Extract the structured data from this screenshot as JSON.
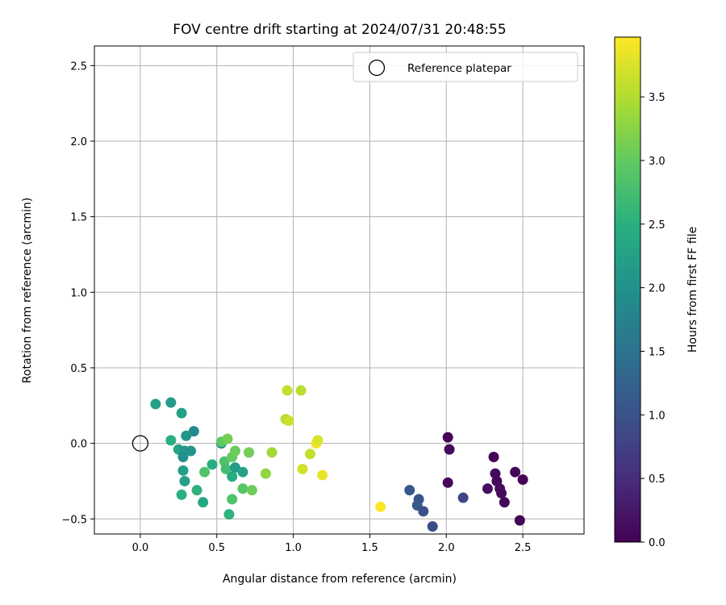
{
  "chart_data": {
    "type": "scatter",
    "title": "FOV centre drift starting at 2024/07/31 20:48:55",
    "xlabel": "Angular distance from reference (arcmin)",
    "ylabel": "Rotation from reference (arcmin)",
    "xlim": [
      -0.3,
      2.9
    ],
    "ylim": [
      -0.6,
      2.63
    ],
    "xticks": [
      0.0,
      0.5,
      1.0,
      1.5,
      2.0,
      2.5
    ],
    "xtick_labels": [
      "0.0",
      "0.5",
      "1.0",
      "1.5",
      "2.0",
      "2.5"
    ],
    "yticks": [
      -0.5,
      0.0,
      0.5,
      1.0,
      1.5,
      2.0,
      2.5
    ],
    "ytick_labels": [
      "−0.5",
      "0.0",
      "0.5",
      "1.0",
      "1.5",
      "2.0",
      "2.5"
    ],
    "grid": true,
    "legend": {
      "placement": "top-right",
      "entries": [
        "Reference platepar"
      ]
    },
    "reference_point": {
      "x": 0.0,
      "y": 0.0,
      "label": "Reference platepar"
    },
    "colorbar": {
      "label": "Hours from first FF file",
      "colormap": "viridis",
      "range": [
        0.0,
        3.97
      ],
      "ticks": [
        0.0,
        0.5,
        1.0,
        1.5,
        2.0,
        2.5,
        3.0,
        3.5
      ],
      "tick_labels": [
        "0.0",
        "0.5",
        "1.0",
        "1.5",
        "2.0",
        "2.5",
        "3.0",
        "3.5"
      ]
    },
    "points": [
      {
        "x": 2.01,
        "y": 0.04,
        "c": 0.05
      },
      {
        "x": 2.02,
        "y": -0.04,
        "c": 0.1
      },
      {
        "x": 2.01,
        "y": -0.26,
        "c": 0.08
      },
      {
        "x": 2.31,
        "y": -0.09,
        "c": 0.05
      },
      {
        "x": 2.32,
        "y": -0.2,
        "c": 0.1
      },
      {
        "x": 2.33,
        "y": -0.25,
        "c": 0.08
      },
      {
        "x": 2.35,
        "y": -0.3,
        "c": 0.12
      },
      {
        "x": 2.36,
        "y": -0.33,
        "c": 0.1
      },
      {
        "x": 2.38,
        "y": -0.39,
        "c": 0.08
      },
      {
        "x": 2.27,
        "y": -0.3,
        "c": 0.15
      },
      {
        "x": 2.45,
        "y": -0.19,
        "c": 0.05
      },
      {
        "x": 2.5,
        "y": -0.24,
        "c": 0.03
      },
      {
        "x": 2.48,
        "y": -0.51,
        "c": 0.02
      },
      {
        "x": 2.11,
        "y": -0.36,
        "c": 0.85
      },
      {
        "x": 1.76,
        "y": -0.31,
        "c": 1.05
      },
      {
        "x": 1.82,
        "y": -0.37,
        "c": 1.0
      },
      {
        "x": 1.81,
        "y": -0.41,
        "c": 1.1
      },
      {
        "x": 1.85,
        "y": -0.45,
        "c": 0.95
      },
      {
        "x": 1.91,
        "y": -0.55,
        "c": 0.9
      },
      {
        "x": 0.1,
        "y": 0.26,
        "c": 2.2
      },
      {
        "x": 0.2,
        "y": 0.27,
        "c": 2.15
      },
      {
        "x": 0.27,
        "y": 0.2,
        "c": 2.25
      },
      {
        "x": 0.35,
        "y": 0.08,
        "c": 1.85
      },
      {
        "x": 0.3,
        "y": 0.05,
        "c": 2.05
      },
      {
        "x": 0.2,
        "y": 0.02,
        "c": 2.5
      },
      {
        "x": 0.25,
        "y": -0.04,
        "c": 2.3
      },
      {
        "x": 0.29,
        "y": -0.05,
        "c": 2.1
      },
      {
        "x": 0.33,
        "y": -0.05,
        "c": 2.0
      },
      {
        "x": 0.28,
        "y": -0.09,
        "c": 1.95
      },
      {
        "x": 0.28,
        "y": -0.18,
        "c": 2.2
      },
      {
        "x": 0.29,
        "y": -0.25,
        "c": 2.25
      },
      {
        "x": 0.27,
        "y": -0.34,
        "c": 2.5
      },
      {
        "x": 0.37,
        "y": -0.31,
        "c": 2.55
      },
      {
        "x": 0.41,
        "y": -0.39,
        "c": 2.35
      },
      {
        "x": 0.42,
        "y": -0.19,
        "c": 2.85
      },
      {
        "x": 0.47,
        "y": -0.14,
        "c": 2.45
      },
      {
        "x": 0.53,
        "y": 0.0,
        "c": 1.8
      },
      {
        "x": 0.53,
        "y": 0.01,
        "c": 2.95
      },
      {
        "x": 0.57,
        "y": 0.03,
        "c": 3.1
      },
      {
        "x": 0.55,
        "y": -0.12,
        "c": 2.85
      },
      {
        "x": 0.56,
        "y": -0.17,
        "c": 2.75
      },
      {
        "x": 0.6,
        "y": -0.09,
        "c": 3.0
      },
      {
        "x": 0.62,
        "y": -0.05,
        "c": 3.05
      },
      {
        "x": 0.62,
        "y": -0.16,
        "c": 2.15
      },
      {
        "x": 0.67,
        "y": -0.19,
        "c": 2.3
      },
      {
        "x": 0.6,
        "y": -0.22,
        "c": 2.45
      },
      {
        "x": 0.67,
        "y": -0.3,
        "c": 2.9
      },
      {
        "x": 0.6,
        "y": -0.37,
        "c": 2.85
      },
      {
        "x": 0.58,
        "y": -0.47,
        "c": 2.55
      },
      {
        "x": 0.71,
        "y": -0.06,
        "c": 3.1
      },
      {
        "x": 0.73,
        "y": -0.31,
        "c": 3.05
      },
      {
        "x": 0.82,
        "y": -0.2,
        "c": 3.3
      },
      {
        "x": 0.86,
        "y": -0.06,
        "c": 3.4
      },
      {
        "x": 0.96,
        "y": 0.35,
        "c": 3.6
      },
      {
        "x": 1.05,
        "y": 0.35,
        "c": 3.55
      },
      {
        "x": 0.95,
        "y": 0.16,
        "c": 3.5
      },
      {
        "x": 0.97,
        "y": 0.15,
        "c": 3.65
      },
      {
        "x": 1.06,
        "y": -0.17,
        "c": 3.7
      },
      {
        "x": 1.11,
        "y": -0.07,
        "c": 3.6
      },
      {
        "x": 1.15,
        "y": 0.0,
        "c": 3.9
      },
      {
        "x": 1.16,
        "y": 0.02,
        "c": 3.75
      },
      {
        "x": 1.19,
        "y": -0.21,
        "c": 3.85
      },
      {
        "x": 1.57,
        "y": -0.42,
        "c": 3.95
      }
    ]
  }
}
